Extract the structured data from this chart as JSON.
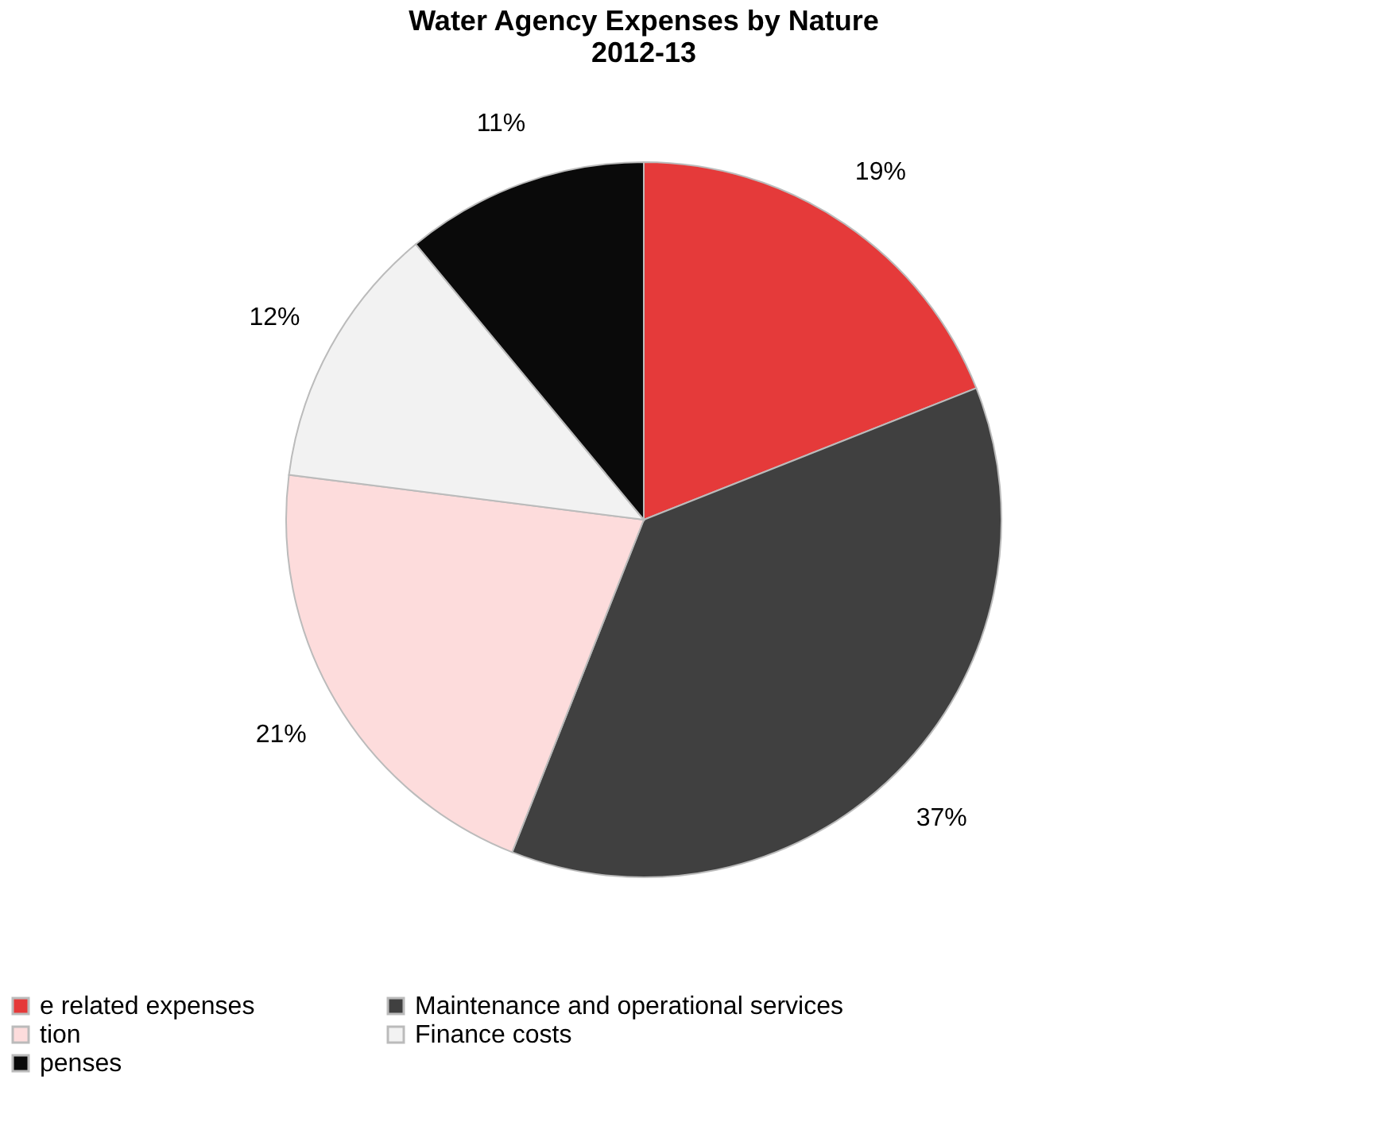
{
  "chart_data": {
    "type": "pie",
    "title": [
      "Water Agency Expenses by Nature",
      "2012-13"
    ],
    "categories": [
      "e related expenses",
      "Maintenance and operational services",
      "tion",
      "Finance costs",
      "penses"
    ],
    "values": [
      19,
      37,
      21,
      12,
      11
    ],
    "value_labels": [
      "19%",
      "37%",
      "21%",
      "12%",
      "11%"
    ],
    "colors": [
      "#e53a3a",
      "#404040",
      "#fddcdc",
      "#f2f2f2",
      "#0a0a0a"
    ],
    "legend": "bottom"
  }
}
